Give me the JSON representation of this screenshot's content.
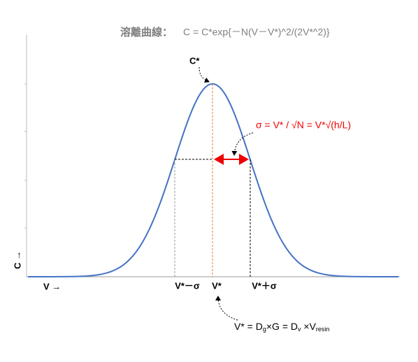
{
  "title": {
    "label": "溶離曲線：",
    "formula": "C = C*exp{－N(V－V*)^2/(2V*^2)}"
  },
  "peak_label": "C*",
  "sigma_label": "σ = V* / √N = V*√(h/L)",
  "x_labels": [
    "V*－σ",
    "V*",
    "V*＋σ"
  ],
  "x_axis_label": "V →",
  "y_axis_label": "C →",
  "bottom_formula": [
    {
      "text": "V* = D"
    },
    {
      "sub": "g"
    },
    {
      "text": "×G = D"
    },
    {
      "sub": "v"
    },
    {
      "text": " ×V"
    },
    {
      "sub": "resin"
    }
  ]
}
